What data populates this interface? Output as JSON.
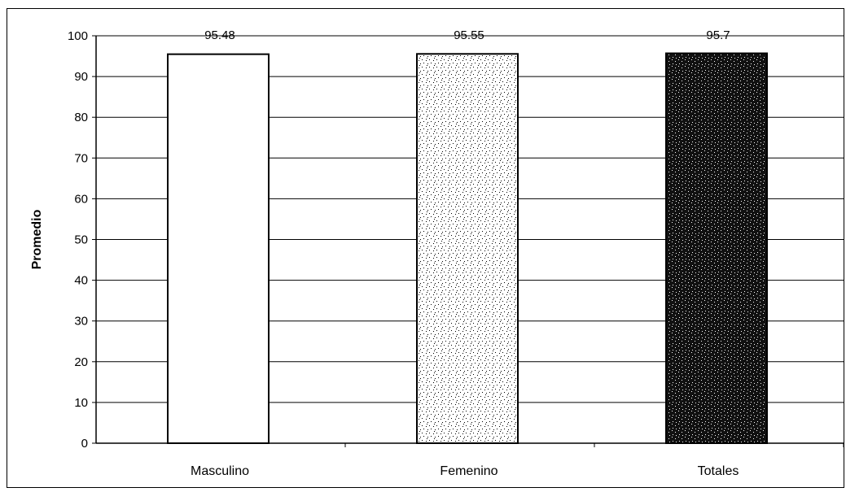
{
  "chart_data": {
    "type": "bar",
    "title": "",
    "xlabel": "",
    "ylabel": "Promedio",
    "categories": [
      "Masculino",
      "Femenino",
      "Totales"
    ],
    "values": [
      95.48,
      95.55,
      95.7
    ],
    "data_labels": [
      "95.48",
      "95.55",
      "95.7"
    ],
    "ylim": [
      0,
      100
    ],
    "yticks": [
      0,
      10,
      20,
      30,
      40,
      50,
      60,
      70,
      80,
      90,
      100
    ],
    "grid": true,
    "legend": "none",
    "bar_fills": [
      "white",
      "light-stipple",
      "dark-stipple"
    ],
    "colors": {
      "axis": "#000000",
      "grid": "#000000",
      "bar_outline": "#000000",
      "bar_fill_plain": "#ffffff",
      "bar_fill_dark": "#111111"
    }
  }
}
